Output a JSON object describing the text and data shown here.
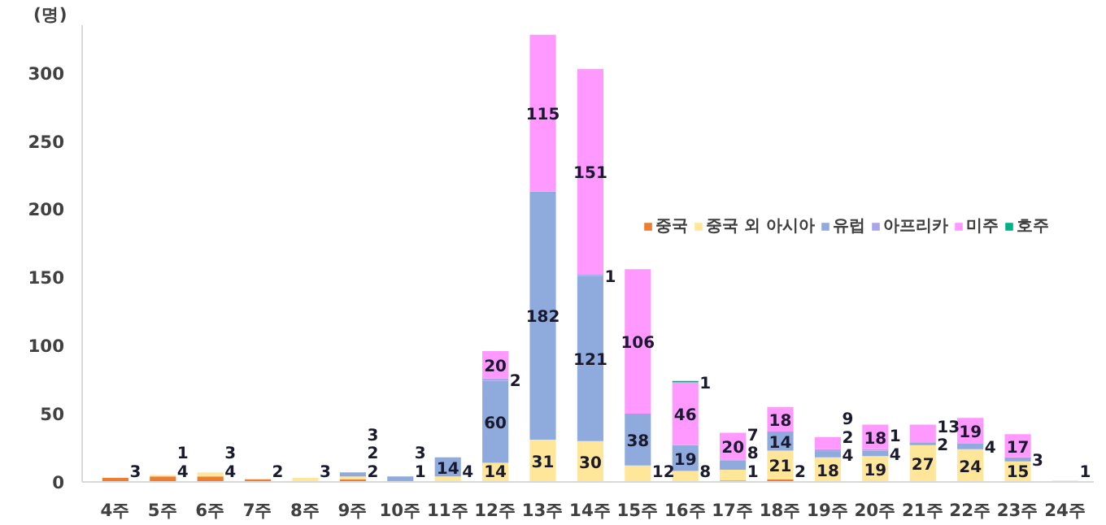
{
  "chart_data": {
    "type": "bar",
    "stacked": true,
    "ylabel": "(명)",
    "categories": [
      "4주",
      "5주",
      "6주",
      "7주",
      "8주",
      "9주",
      "10주",
      "11주",
      "12주",
      "13주",
      "14주",
      "15주",
      "16주",
      "17주",
      "18주",
      "19주",
      "20주",
      "21주",
      "22주",
      "23주",
      "24주"
    ],
    "series": [
      {
        "name": "중국",
        "color": "#ed7d31",
        "values": [
          3,
          4,
          4,
          2,
          null,
          2,
          1,
          null,
          null,
          null,
          null,
          null,
          null,
          1,
          2,
          null,
          null,
          null,
          null,
          null,
          null
        ]
      },
      {
        "name": "중국 외 아시아",
        "color": "#ffe699",
        "values": [
          null,
          1,
          3,
          null,
          3,
          2,
          null,
          4,
          14,
          31,
          30,
          12,
          8,
          8,
          21,
          18,
          19,
          27,
          24,
          15,
          1
        ]
      },
      {
        "name": "유럽",
        "color": "#8faadc",
        "values": [
          null,
          null,
          null,
          null,
          null,
          3,
          3,
          14,
          60,
          182,
          121,
          38,
          19,
          7,
          14,
          4,
          4,
          2,
          4,
          3,
          null
        ]
      },
      {
        "name": "아프리카",
        "color": "#a9a4ec",
        "values": [
          null,
          null,
          null,
          null,
          null,
          null,
          null,
          null,
          2,
          null,
          1,
          null,
          null,
          null,
          null,
          2,
          1,
          null,
          null,
          null,
          null
        ]
      },
      {
        "name": "미주",
        "color": "#ff99ff",
        "values": [
          null,
          null,
          null,
          null,
          null,
          null,
          null,
          null,
          20,
          115,
          151,
          106,
          46,
          20,
          18,
          9,
          18,
          13,
          19,
          17,
          null
        ]
      },
      {
        "name": "호주",
        "color": "#00b386",
        "values": [
          null,
          null,
          null,
          null,
          null,
          null,
          null,
          null,
          null,
          null,
          null,
          null,
          1,
          null,
          null,
          null,
          null,
          null,
          null,
          null,
          null
        ]
      }
    ],
    "data_labels": true,
    "ylim": [
      0,
      335
    ],
    "yticks": [
      0,
      50,
      100,
      150,
      200,
      250,
      300
    ],
    "grid": false,
    "legend": "right"
  }
}
